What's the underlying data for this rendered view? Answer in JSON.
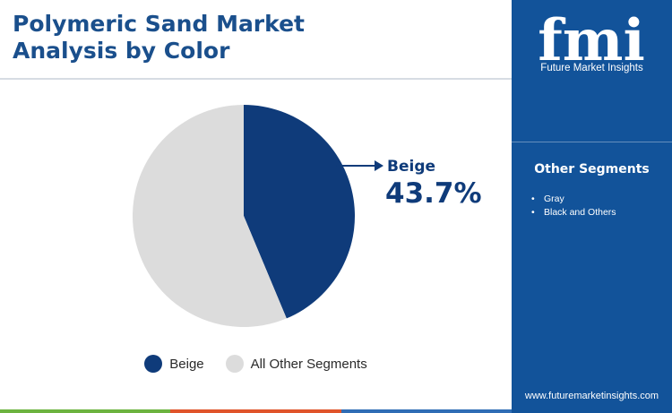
{
  "title_line1": "Polymeric Sand Market",
  "title_line2": "Analysis by Color",
  "chart_data": {
    "type": "pie",
    "categories": [
      "Beige",
      "All Other Segments"
    ],
    "values": [
      43.7,
      56.3
    ],
    "colors": [
      "#0f3b7a",
      "#dcdcdc"
    ],
    "callout": {
      "label": "Beige",
      "value": "43.7%"
    },
    "legend": [
      "Beige",
      "All Other Segments"
    ],
    "legend_position": "bottom"
  },
  "sidebar": {
    "logo_text": "fmi",
    "logo_subtitle": "Future Market Insights",
    "heading": "Other Segments",
    "items": [
      "Gray",
      "Black and Others"
    ],
    "url": "www.futuremarketinsights.com"
  },
  "footer_colors": [
    "#6cb33f",
    "#e0542a",
    "#2f6db5"
  ]
}
